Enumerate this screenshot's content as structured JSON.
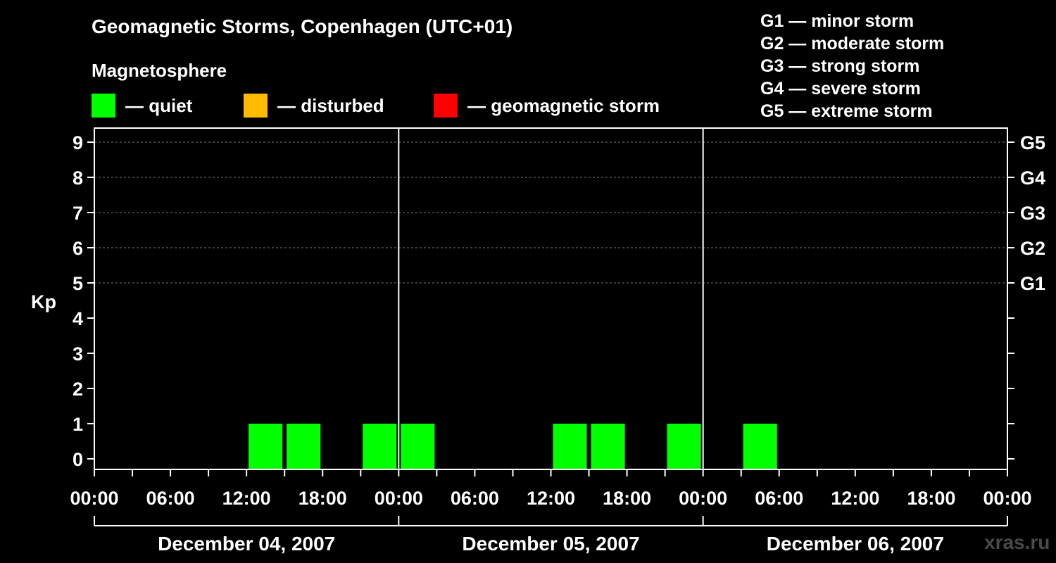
{
  "chart_data": {
    "type": "bar",
    "title": "Geomagnetic Storms, Copenhagen (UTC+01)",
    "subtitle": "Magnetosphere",
    "ylabel": "Kp",
    "ylim": [
      0,
      9
    ],
    "y_ticks": [
      "0",
      "1",
      "2",
      "3",
      "4",
      "5",
      "6",
      "7",
      "8",
      "9"
    ],
    "right_axis_labels": [
      {
        "kp": 5,
        "label": "G1"
      },
      {
        "kp": 6,
        "label": "G2"
      },
      {
        "kp": 7,
        "label": "G3"
      },
      {
        "kp": 8,
        "label": "G4"
      },
      {
        "kp": 9,
        "label": "G5"
      }
    ],
    "x_range_hours": [
      0,
      72
    ],
    "x_tick_labels": [
      "00:00",
      "06:00",
      "12:00",
      "18:00",
      "00:00",
      "06:00",
      "12:00",
      "18:00",
      "00:00",
      "06:00",
      "12:00",
      "18:00",
      "00:00"
    ],
    "x_tick_hours": [
      0,
      6,
      12,
      18,
      24,
      30,
      36,
      42,
      48,
      54,
      60,
      66,
      72
    ],
    "day_labels": [
      "December 04, 2007",
      "December 05, 2007",
      "December 06, 2007"
    ],
    "day_dividers_hours": [
      24,
      48
    ],
    "bar_width_hours": 2.67,
    "bars": [
      {
        "center_hour": 13.5,
        "kp": 1,
        "status": "quiet"
      },
      {
        "center_hour": 16.5,
        "kp": 1,
        "status": "quiet"
      },
      {
        "center_hour": 22.5,
        "kp": 1,
        "status": "quiet"
      },
      {
        "center_hour": 25.5,
        "kp": 1,
        "status": "quiet"
      },
      {
        "center_hour": 37.5,
        "kp": 1,
        "status": "quiet"
      },
      {
        "center_hour": 40.5,
        "kp": 1,
        "status": "quiet"
      },
      {
        "center_hour": 46.5,
        "kp": 1,
        "status": "quiet"
      },
      {
        "center_hour": 52.5,
        "kp": 1,
        "status": "quiet"
      }
    ]
  },
  "legend": [
    {
      "status": "quiet",
      "label": "— quiet",
      "color": "#00ff00"
    },
    {
      "status": "disturbed",
      "label": "— disturbed",
      "color": "#ffbb00"
    },
    {
      "status": "storm",
      "label": "— geomagnetic storm",
      "color": "#ff0000"
    }
  ],
  "storm_scale": [
    "G1 — minor storm",
    "G2 — moderate storm",
    "G3 — strong storm",
    "G4 — severe storm",
    "G5 — extreme storm"
  ],
  "watermark": "xras.ru"
}
